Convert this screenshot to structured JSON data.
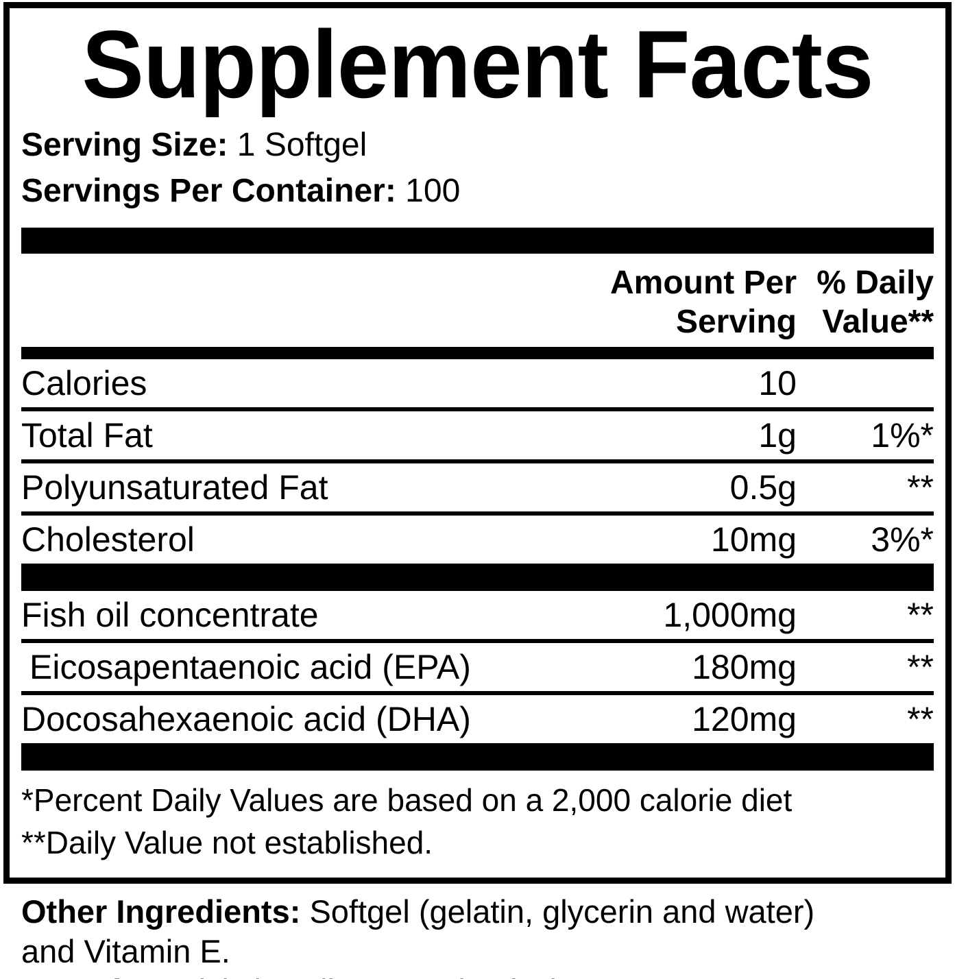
{
  "colors": {
    "ink": "#000000",
    "paper": "#ffffff"
  },
  "title": "Supplement Facts",
  "serving_info": [
    {
      "label": "Serving Size:",
      "value": "1 Softgel"
    },
    {
      "label": "Servings Per Container:",
      "value": "100"
    }
  ],
  "column_headers": {
    "amount_line1": "Amount Per",
    "amount_line2": "Serving",
    "dv_line1": "% Daily",
    "dv_line2": "Value**"
  },
  "nutrient_rows": [
    {
      "name": "Calories",
      "amount": "10",
      "dv": "",
      "section": 1,
      "indent": false
    },
    {
      "name": "Total Fat",
      "amount": "1g",
      "dv": "1%*",
      "section": 1,
      "indent": false
    },
    {
      "name": "Polyunsaturated Fat",
      "amount": "0.5g",
      "dv": "**",
      "section": 1,
      "indent": false
    },
    {
      "name": "Cholesterol",
      "amount": "10mg",
      "dv": "3%*",
      "section": 1,
      "indent": false
    },
    {
      "name": "Fish oil concentrate",
      "amount": "1,000mg",
      "dv": "**",
      "section": 2,
      "indent": false
    },
    {
      "name": "Eicosapentaenoic acid (EPA)",
      "amount": "180mg",
      "dv": "**",
      "section": 2,
      "indent": true
    },
    {
      "name": "Docosahexaenoic acid (DHA)",
      "amount": "120mg",
      "dv": "**",
      "section": 2,
      "indent": false
    }
  ],
  "footnotes": [
    "*Percent Daily Values are based on a 2,000 calorie diet",
    "**Daily Value not established."
  ],
  "bottom_info": [
    {
      "label": "Other Ingredients:",
      "value": "Softgel (gelatin, glycerin and water)"
    },
    {
      "label": "",
      "value": "and Vitamin E."
    },
    {
      "label": "Contains:",
      "value": "Fish (Sardines, Anchovies)"
    }
  ]
}
